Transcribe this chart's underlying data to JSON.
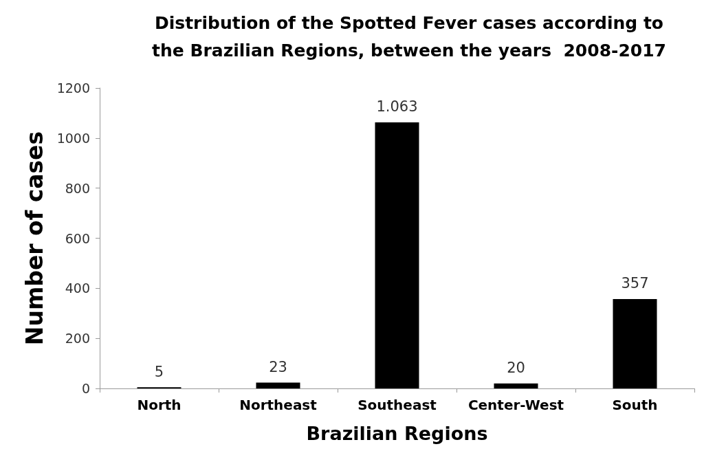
{
  "chart_data": {
    "type": "bar",
    "title": "Distribution of the Spotted Fever cases according to\nthe Brazilian Regions, between the years  2008-2017",
    "xlabel": "Brazilian Regions",
    "ylabel": "Number of cases",
    "categories": [
      "North",
      "Northeast",
      "Southeast",
      "Center-West",
      "South"
    ],
    "values": [
      5,
      23,
      1063,
      20,
      357
    ],
    "value_labels": [
      "5",
      "23",
      "1.063",
      "20",
      "357"
    ],
    "color": "#000000",
    "ylim": [
      0,
      1200
    ],
    "yticks": [
      0,
      200,
      400,
      600,
      800,
      1000,
      1200
    ],
    "grid": false
  }
}
